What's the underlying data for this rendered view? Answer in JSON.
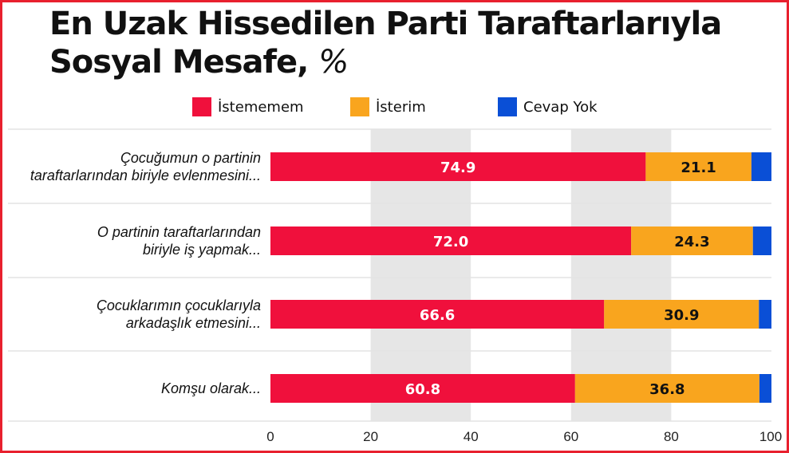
{
  "title_main": "En Uzak Hissedilen Parti Taraftarlarıyla Sosyal Mesafe,",
  "title_unit": "%",
  "legend": [
    {
      "label": "İstememem",
      "color": "#f0103c"
    },
    {
      "label": "İsterim",
      "color": "#f9a51e"
    },
    {
      "label": "Cevap Yok",
      "color": "#0a4fd6"
    }
  ],
  "chart_data": {
    "type": "bar",
    "orientation": "horizontal",
    "stacked": true,
    "categories": [
      [
        "Çocuğumun o partinin",
        "taraftarlarından biriyle evlenmesini..."
      ],
      [
        "O partinin taraftarlarından",
        "biriyle iş yapmak..."
      ],
      [
        "Çocuklarımın çocuklarıyla",
        "arkadaşlık etmesini..."
      ],
      [
        "Komşu olarak..."
      ]
    ],
    "series": [
      {
        "name": "İstememem",
        "color": "#f0103c",
        "values": [
          74.9,
          72.0,
          66.6,
          60.8
        ],
        "labels": [
          "74.9",
          "72.0",
          "66.6",
          "60.8"
        ],
        "label_color": "#ffffff"
      },
      {
        "name": "İsterim",
        "color": "#f9a51e",
        "values": [
          21.1,
          24.3,
          30.9,
          36.8
        ],
        "labels": [
          "21.1",
          "24.3",
          "30.9",
          "36.8"
        ],
        "label_color": "#111111"
      },
      {
        "name": "Cevap Yok",
        "color": "#0a4fd6",
        "values": [
          4.0,
          3.7,
          2.5,
          2.4
        ],
        "labels": [],
        "label_color": "#ffffff"
      }
    ],
    "xlim": [
      0,
      100
    ],
    "xticks": [
      "0",
      "20",
      "40",
      "60",
      "80",
      "100"
    ],
    "shaded_bands": [
      [
        20,
        40
      ],
      [
        60,
        80
      ]
    ],
    "band_color": "#e6e6e6",
    "grid": true
  }
}
